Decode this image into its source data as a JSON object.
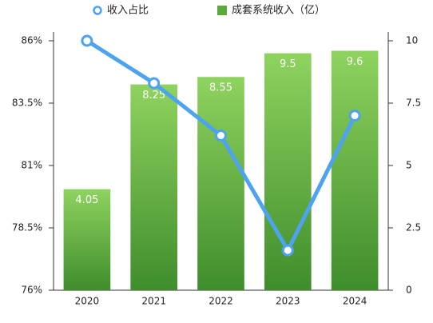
{
  "chart_data": {
    "type": "combo",
    "categories": [
      "2020",
      "2021",
      "2022",
      "2023",
      "2024"
    ],
    "series": [
      {
        "name": "收入占比",
        "type": "line",
        "color": "#4da3ee",
        "values": [
          86,
          84.3,
          82.2,
          77.6,
          83.0
        ]
      },
      {
        "name": "成套系统收入（亿）",
        "type": "bar",
        "axis": "y2",
        "color": "#5aab3a",
        "values": [
          4.05,
          8.25,
          8.55,
          9.5,
          9.6
        ]
      }
    ],
    "ylim": [
      76,
      86
    ],
    "yticks": [
      {
        "value": 76,
        "label": "76%"
      },
      {
        "value": 78.5,
        "label": "78.5%"
      },
      {
        "value": 81,
        "label": "81%"
      },
      {
        "value": 83.5,
        "label": "83.5%"
      },
      {
        "value": 86,
        "label": "86%"
      }
    ],
    "y2lim": [
      0,
      10
    ],
    "y2ticks": [
      0,
      2.5,
      5,
      7.5,
      10
    ],
    "legend": "top"
  }
}
